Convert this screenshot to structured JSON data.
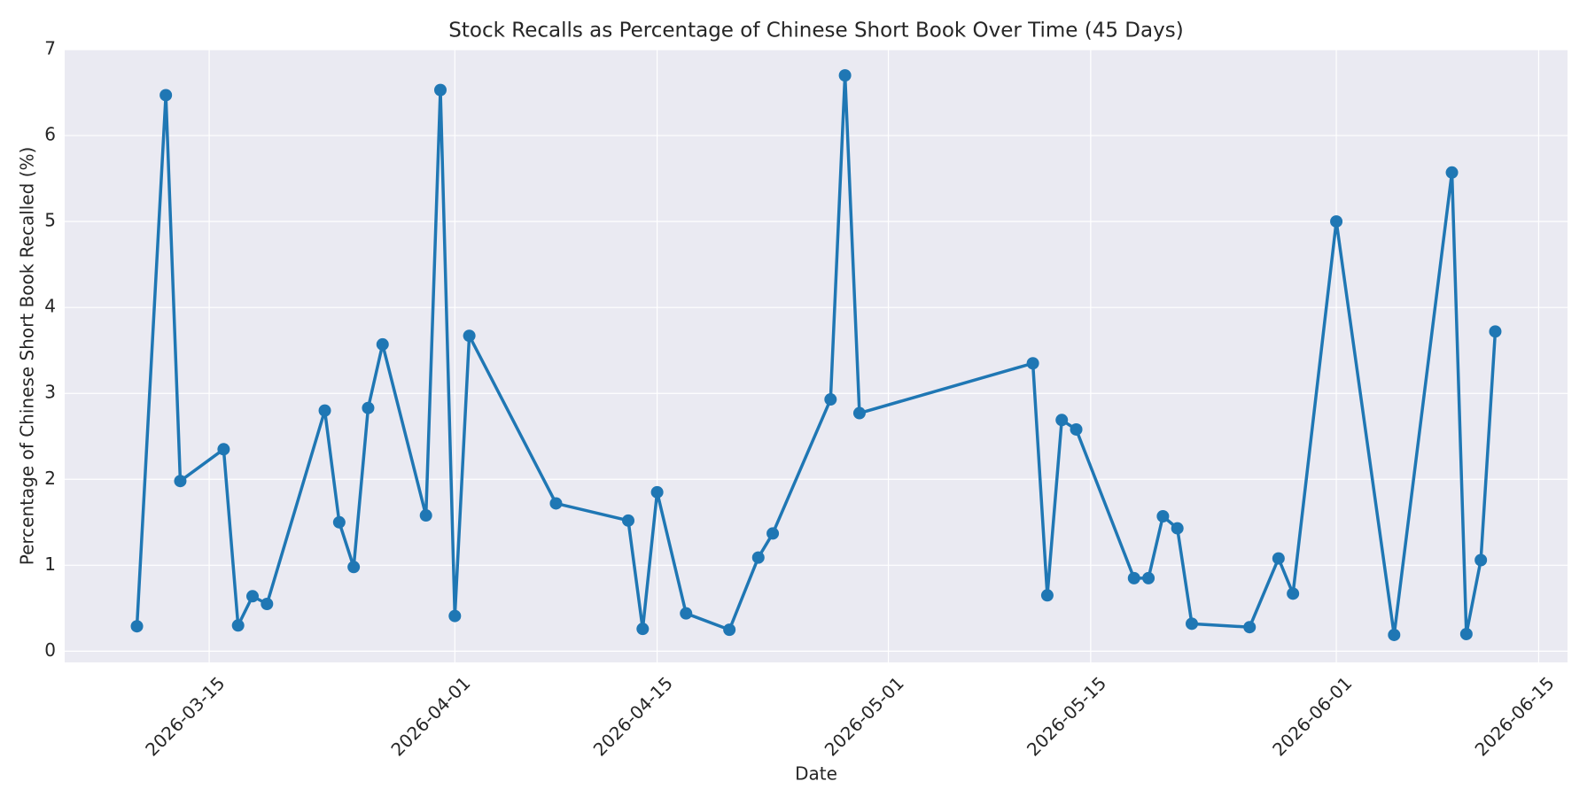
{
  "chart_data": {
    "type": "line",
    "title": "Stock Recalls as Percentage of Chinese Short Book Over Time (45 Days)",
    "x_label": "Date",
    "y_label": "Percentage of Chinese Short Book Recalled (%)",
    "x": [
      "2026-03-10",
      "2026-03-12",
      "2026-03-13",
      "2026-03-16",
      "2026-03-17",
      "2026-03-18",
      "2026-03-19",
      "2026-03-23",
      "2026-03-24",
      "2026-03-25",
      "2026-03-26",
      "2026-03-27",
      "2026-03-30",
      "2026-03-31",
      "2026-04-01",
      "2026-04-02",
      "2026-04-08",
      "2026-04-13",
      "2026-04-14",
      "2026-04-15",
      "2026-04-17",
      "2026-04-20",
      "2026-04-22",
      "2026-04-23",
      "2026-04-27",
      "2026-04-28",
      "2026-04-29",
      "2026-05-11",
      "2026-05-12",
      "2026-05-13",
      "2026-05-14",
      "2026-05-18",
      "2026-05-19",
      "2026-05-20",
      "2026-05-21",
      "2026-05-22",
      "2026-05-26",
      "2026-05-28",
      "2026-05-29",
      "2026-06-01",
      "2026-06-05",
      "2026-06-09",
      "2026-06-10",
      "2026-06-11",
      "2026-06-12"
    ],
    "series": [
      {
        "color": "#1f77b4",
        "values": [
          0.29,
          6.47,
          1.98,
          2.35,
          0.3,
          0.64,
          0.55,
          2.8,
          1.5,
          0.98,
          2.83,
          3.57,
          1.58,
          6.53,
          0.41,
          3.67,
          1.72,
          1.52,
          0.26,
          1.85,
          0.44,
          0.25,
          1.09,
          1.37,
          2.93,
          6.7,
          2.77,
          3.35,
          0.65,
          2.69,
          2.58,
          0.85,
          0.85,
          1.57,
          1.43,
          0.32,
          0.28,
          1.08,
          0.67,
          5.0,
          0.19,
          5.57,
          0.2,
          1.06,
          3.72
        ]
      }
    ],
    "xlim": [
      "2026-03-05",
      "2026-06-17"
    ],
    "xticks": [
      "2026-03-15",
      "2026-04-01",
      "2026-04-15",
      "2026-05-01",
      "2026-05-15",
      "2026-06-01",
      "2026-06-15"
    ],
    "ylim": [
      -0.13,
      7
    ],
    "yticks": [
      0,
      1,
      2,
      3,
      4,
      5,
      6,
      7
    ],
    "grid": true
  }
}
